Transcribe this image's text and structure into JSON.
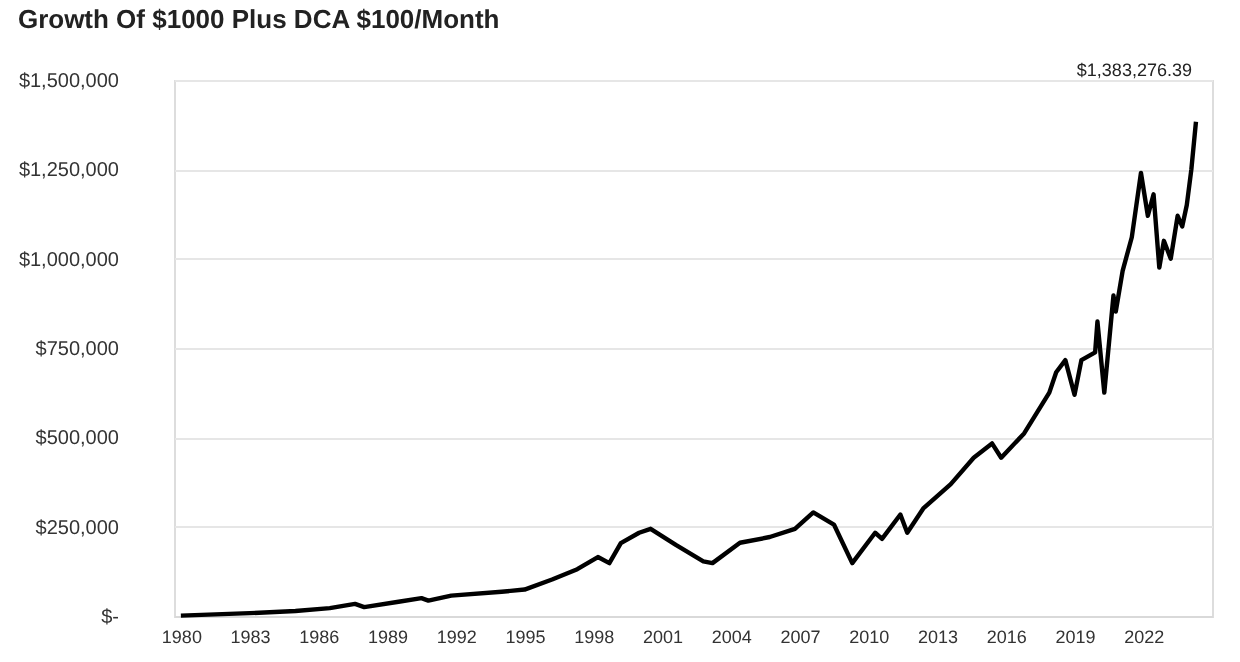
{
  "chart_data": {
    "type": "line",
    "title": "Growth Of $1000 Plus DCA $100/Month",
    "x": [
      1980.0,
      1983.0,
      1985.0,
      1986.5,
      1987.6,
      1988.0,
      1989.5,
      1990.5,
      1990.8,
      1991.8,
      1994.0,
      1995.0,
      1996.2,
      1997.3,
      1998.2,
      1998.7,
      1999.2,
      2000.0,
      2000.5,
      2001.6,
      2002.8,
      2003.2,
      2004.4,
      2005.7,
      2006.8,
      2007.6,
      2008.5,
      2009.3,
      2010.3,
      2010.6,
      2011.4,
      2011.7,
      2012.4,
      2013.6,
      2014.6,
      2015.4,
      2015.8,
      2016.8,
      2017.9,
      2018.2,
      2018.6,
      2019.0,
      2019.3,
      2019.9,
      2020.0,
      2020.3,
      2020.7,
      2020.8,
      2021.1,
      2021.5,
      2021.9,
      2022.2,
      2022.45,
      2022.7,
      2022.9,
      2023.2,
      2023.5,
      2023.7,
      2023.9,
      2024.1,
      2024.3
    ],
    "series": [
      {
        "color": "#000000",
        "values": [
          1000,
          8000,
          14000,
          22000,
          34000,
          25000,
          40000,
          50000,
          43000,
          57000,
          68000,
          74000,
          102000,
          131000,
          165000,
          148000,
          204000,
          233000,
          244000,
          199000,
          153000,
          148000,
          205000,
          221000,
          244000,
          290000,
          256000,
          148000,
          233000,
          216000,
          284000,
          233000,
          301000,
          369000,
          443000,
          483000,
          443000,
          511000,
          625000,
          682000,
          716000,
          619000,
          716000,
          738000,
          824000,
          625000,
          897000,
          852000,
          966000,
          1060000,
          1240000,
          1120000,
          1180000,
          975000,
          1050000,
          1000000,
          1120000,
          1090000,
          1150000,
          1250000,
          1383276.39
        ]
      }
    ],
    "xlim": [
      1979.7,
      2025.0
    ],
    "xticks": [
      1980,
      1983,
      1986,
      1989,
      1992,
      1995,
      1998,
      2001,
      2004,
      2007,
      2010,
      2013,
      2016,
      2019,
      2022
    ],
    "ylim": [
      0,
      1500000
    ],
    "yticks": [
      {
        "value": 0,
        "label": "$-"
      },
      {
        "value": 250000,
        "label": "$250,000"
      },
      {
        "value": 500000,
        "label": "$500,000"
      },
      {
        "value": 750000,
        "label": "$750,000"
      },
      {
        "value": 1000000,
        "label": "$1,000,000"
      },
      {
        "value": 1250000,
        "label": "$1,250,000"
      },
      {
        "value": 1500000,
        "label": "$1,500,000"
      }
    ],
    "grid": "y",
    "line_style": "solid",
    "marker": "none",
    "annotations": [
      {
        "text": "$1,383,276.39",
        "x": 2024.3,
        "y": 1383276.39
      }
    ]
  }
}
